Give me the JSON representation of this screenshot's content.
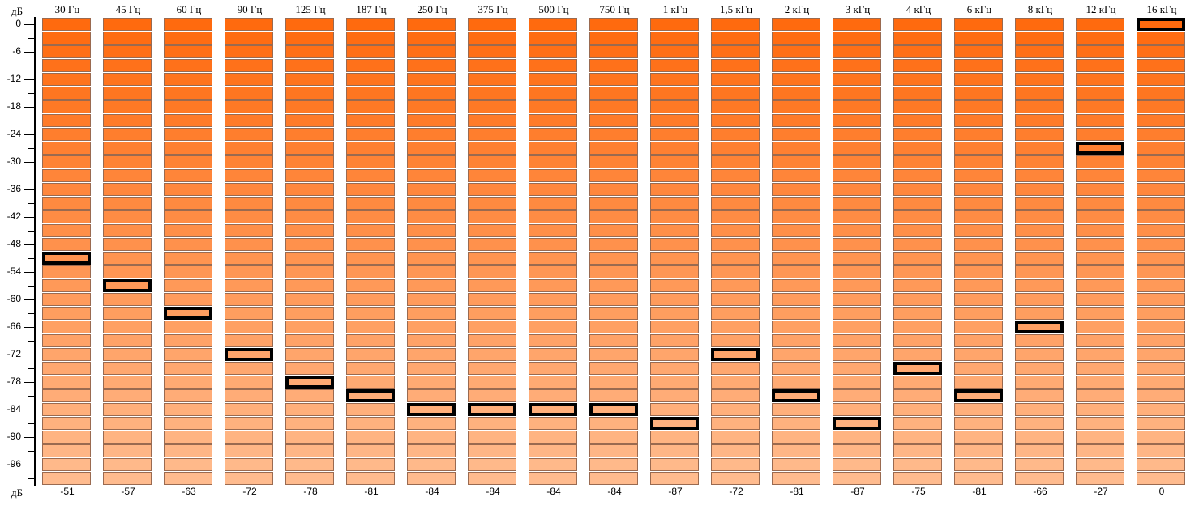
{
  "axis": {
    "unit_top": "дБ",
    "unit_bottom": "дБ",
    "ticks": [
      "0",
      "-6",
      "-12",
      "-18",
      "-24",
      "-30",
      "-36",
      "-42",
      "-48",
      "-54",
      "-60",
      "-66",
      "-72",
      "-78",
      "-84",
      "-90",
      "-96"
    ]
  },
  "meter": {
    "min_db": -99,
    "max_db": 0,
    "step_db": 3,
    "color_top": "#ff6a0e",
    "color_bottom": "#ffbb8e",
    "peak_border": "#000000"
  },
  "bands": [
    {
      "label": "30 Гц",
      "value": "-51"
    },
    {
      "label": "45 Гц",
      "value": "-57"
    },
    {
      "label": "60 Гц",
      "value": "-63"
    },
    {
      "label": "90 Гц",
      "value": "-72"
    },
    {
      "label": "125 Гц",
      "value": "-78"
    },
    {
      "label": "187 Гц",
      "value": "-81"
    },
    {
      "label": "250 Гц",
      "value": "-84"
    },
    {
      "label": "375 Гц",
      "value": "-84"
    },
    {
      "label": "500 Гц",
      "value": "-84"
    },
    {
      "label": "750 Гц",
      "value": "-84"
    },
    {
      "label": "1 кГц",
      "value": "-87"
    },
    {
      "label": "1,5 кГц",
      "value": "-72"
    },
    {
      "label": "2 кГц",
      "value": "-81"
    },
    {
      "label": "3 кГц",
      "value": "-87"
    },
    {
      "label": "4 кГц",
      "value": "-75"
    },
    {
      "label": "6 кГц",
      "value": "-81"
    },
    {
      "label": "8 кГц",
      "value": "-66"
    },
    {
      "label": "12 кГц",
      "value": "-27"
    },
    {
      "label": "16 кГц",
      "value": "0"
    }
  ]
}
